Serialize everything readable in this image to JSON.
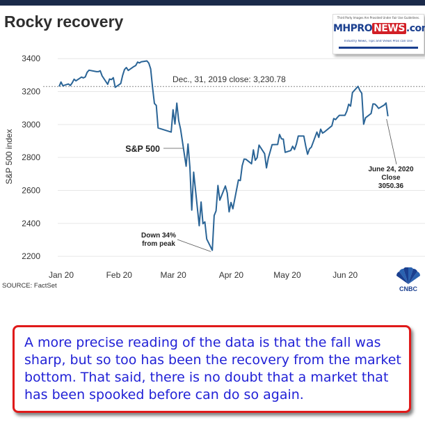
{
  "header": {
    "title": "Rocky recovery"
  },
  "logo": {
    "disclaimer": "Third Party Images Are Provided Under Fair Use Guidelines.",
    "word_part1": "MHPRO",
    "word_part2": "NEWS",
    "word_suffix": ".com",
    "tagline": "Industry News, Tips and Views Pros can Use"
  },
  "chart_data": {
    "type": "line",
    "ylabel": "S&P 500 index",
    "ylim": [
      2150,
      3460
    ],
    "yticks": [
      2200,
      2400,
      2600,
      2800,
      3000,
      3200,
      3400
    ],
    "xticks": [
      {
        "label": "Jan 20",
        "day": 1
      },
      {
        "label": "Feb 20",
        "day": 32
      },
      {
        "label": "Mar 20",
        "day": 61
      },
      {
        "label": "Apr 20",
        "day": 92
      },
      {
        "label": "May 20",
        "day": 122
      },
      {
        "label": "Jun 20",
        "day": 153
      }
    ],
    "reference_line": {
      "value": 3230.78,
      "label": "Dec., 31, 2019 close:  3,230.78"
    },
    "series": [
      {
        "name": "S&P 500",
        "color": "#2a6496",
        "points": [
          [
            1,
            3231
          ],
          [
            2,
            3258
          ],
          [
            3,
            3235
          ],
          [
            6,
            3246
          ],
          [
            7,
            3237
          ],
          [
            8,
            3253
          ],
          [
            9,
            3275
          ],
          [
            10,
            3265
          ],
          [
            13,
            3288
          ],
          [
            14,
            3283
          ],
          [
            15,
            3289
          ],
          [
            16,
            3317
          ],
          [
            17,
            3330
          ],
          [
            21,
            3321
          ],
          [
            22,
            3321
          ],
          [
            23,
            3326
          ],
          [
            24,
            3295
          ],
          [
            27,
            3244
          ],
          [
            28,
            3276
          ],
          [
            29,
            3273
          ],
          [
            30,
            3284
          ],
          [
            31,
            3226
          ],
          [
            34,
            3249
          ],
          [
            35,
            3298
          ],
          [
            36,
            3334
          ],
          [
            37,
            3346
          ],
          [
            38,
            3328
          ],
          [
            41,
            3352
          ],
          [
            42,
            3358
          ],
          [
            43,
            3379
          ],
          [
            44,
            3374
          ],
          [
            45,
            3381
          ],
          [
            48,
            3386
          ],
          [
            49,
            3373
          ],
          [
            50,
            3338
          ],
          [
            51,
            3226
          ],
          [
            52,
            3128
          ],
          [
            53,
            3116
          ],
          [
            54,
            2979
          ],
          [
            61,
            2954
          ],
          [
            62,
            3090
          ],
          [
            63,
            3003
          ],
          [
            64,
            3130
          ],
          [
            65,
            3024
          ],
          [
            66,
            2972
          ],
          [
            69,
            2747
          ],
          [
            70,
            2882
          ],
          [
            71,
            2741
          ],
          [
            72,
            2481
          ],
          [
            73,
            2711
          ],
          [
            76,
            2386
          ],
          [
            77,
            2530
          ],
          [
            78,
            2398
          ],
          [
            79,
            2409
          ],
          [
            80,
            2305
          ],
          [
            83,
            2237
          ],
          [
            84,
            2448
          ],
          [
            85,
            2476
          ],
          [
            86,
            2630
          ],
          [
            87,
            2541
          ],
          [
            90,
            2627
          ],
          [
            91,
            2585
          ],
          [
            92,
            2470
          ],
          [
            93,
            2527
          ],
          [
            94,
            2489
          ],
          [
            97,
            2664
          ],
          [
            98,
            2660
          ],
          [
            99,
            2750
          ],
          [
            100,
            2790
          ],
          [
            101,
            2789
          ],
          [
            104,
            2762
          ],
          [
            105,
            2846
          ],
          [
            106,
            2783
          ],
          [
            107,
            2799
          ],
          [
            108,
            2875
          ],
          [
            111,
            2823
          ],
          [
            112,
            2737
          ],
          [
            113,
            2798
          ],
          [
            114,
            2837
          ],
          [
            115,
            2878
          ],
          [
            118,
            2879
          ],
          [
            119,
            2940
          ],
          [
            120,
            2913
          ],
          [
            121,
            2912
          ],
          [
            122,
            2831
          ],
          [
            125,
            2842
          ],
          [
            126,
            2868
          ],
          [
            127,
            2848
          ],
          [
            128,
            2881
          ],
          [
            129,
            2930
          ],
          [
            132,
            2930
          ],
          [
            133,
            2870
          ],
          [
            134,
            2820
          ],
          [
            135,
            2852
          ],
          [
            136,
            2863
          ],
          [
            139,
            2954
          ],
          [
            140,
            2922
          ],
          [
            141,
            2972
          ],
          [
            142,
            2948
          ],
          [
            143,
            2955
          ],
          [
            147,
            2992
          ],
          [
            148,
            3036
          ],
          [
            149,
            3030
          ],
          [
            150,
            3044
          ],
          [
            151,
            3056
          ],
          [
            154,
            3056
          ],
          [
            155,
            3081
          ],
          [
            156,
            3123
          ],
          [
            157,
            3112
          ],
          [
            158,
            3194
          ],
          [
            161,
            3232
          ],
          [
            162,
            3207
          ],
          [
            163,
            3190
          ],
          [
            164,
            3002
          ],
          [
            165,
            3041
          ],
          [
            168,
            3067
          ],
          [
            169,
            3125
          ],
          [
            170,
            3124
          ],
          [
            171,
            3113
          ],
          [
            172,
            3098
          ],
          [
            175,
            3118
          ],
          [
            176,
            3131
          ],
          [
            177,
            3050
          ]
        ]
      }
    ],
    "annotations": {
      "series_label": "S&P 500",
      "trough_line1": "Down 34%",
      "trough_line2": "from peak",
      "end_line1": "June 24, 2020",
      "end_line2": "Close",
      "end_line3": "3050.36"
    }
  },
  "footer": {
    "source": "SOURCE: FactSet",
    "network_logo": "CNBC"
  },
  "callout": {
    "text": "A more precise reading of the data is that the fall was sharp, but so too has been the recovery from the market bottom. That said, there is no doubt that a market that has been spooked before can do so again."
  }
}
